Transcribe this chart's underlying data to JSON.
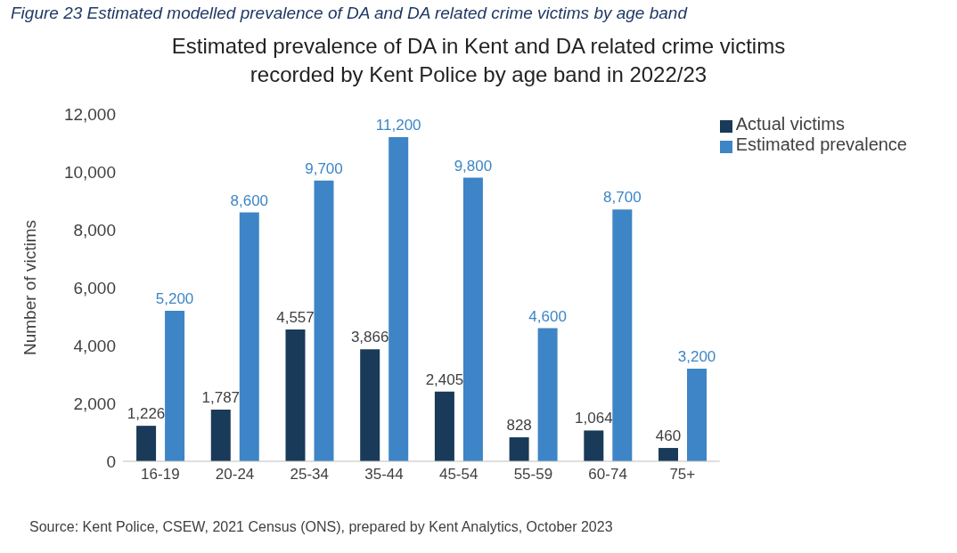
{
  "chart_data": {
    "type": "bar",
    "title": "Estimated prevalence of DA in Kent and DA related crime victims recorded by Kent Police by age band in 2022/23",
    "ylabel": "Number of victims",
    "categories": [
      "16-19",
      "20-24",
      "25-34",
      "35-44",
      "45-54",
      "55-59",
      "60-74",
      "75+"
    ],
    "series": [
      {
        "name": "Actual victims",
        "color": "#193a58",
        "values": [
          1226,
          1787,
          4557,
          3866,
          2405,
          828,
          1064,
          460
        ],
        "value_labels": [
          "1,226",
          "1,787",
          "4,557",
          "3,866",
          "2,405",
          "828",
          "1,064",
          "460"
        ]
      },
      {
        "name": "Estimated prevalence",
        "color": "#3d85c6",
        "values": [
          5200,
          8600,
          9700,
          11200,
          9800,
          4600,
          8700,
          3200
        ],
        "value_labels": [
          "5,200",
          "8,600",
          "9,700",
          "11,200",
          "9,800",
          "4,600",
          "8,700",
          "3,200"
        ]
      }
    ],
    "ylim": [
      0,
      12000
    ],
    "yticks": [
      {
        "value": 0,
        "label": "0"
      },
      {
        "value": 2000,
        "label": "2,000"
      },
      {
        "value": 4000,
        "label": "4,000"
      },
      {
        "value": 6000,
        "label": "6,000"
      },
      {
        "value": 8000,
        "label": "8,000"
      },
      {
        "value": 10000,
        "label": "10,000"
      },
      {
        "value": 12000,
        "label": "12,000"
      }
    ],
    "grid": false,
    "legend": "top right",
    "annotations": [
      "Figure 23 Estimated modelled prevalence of DA and DA related crime victims by age band",
      "Source: Kent Police, CSEW, 2021 Census (ONS), prepared by Kent Analytics, October 2023"
    ]
  }
}
